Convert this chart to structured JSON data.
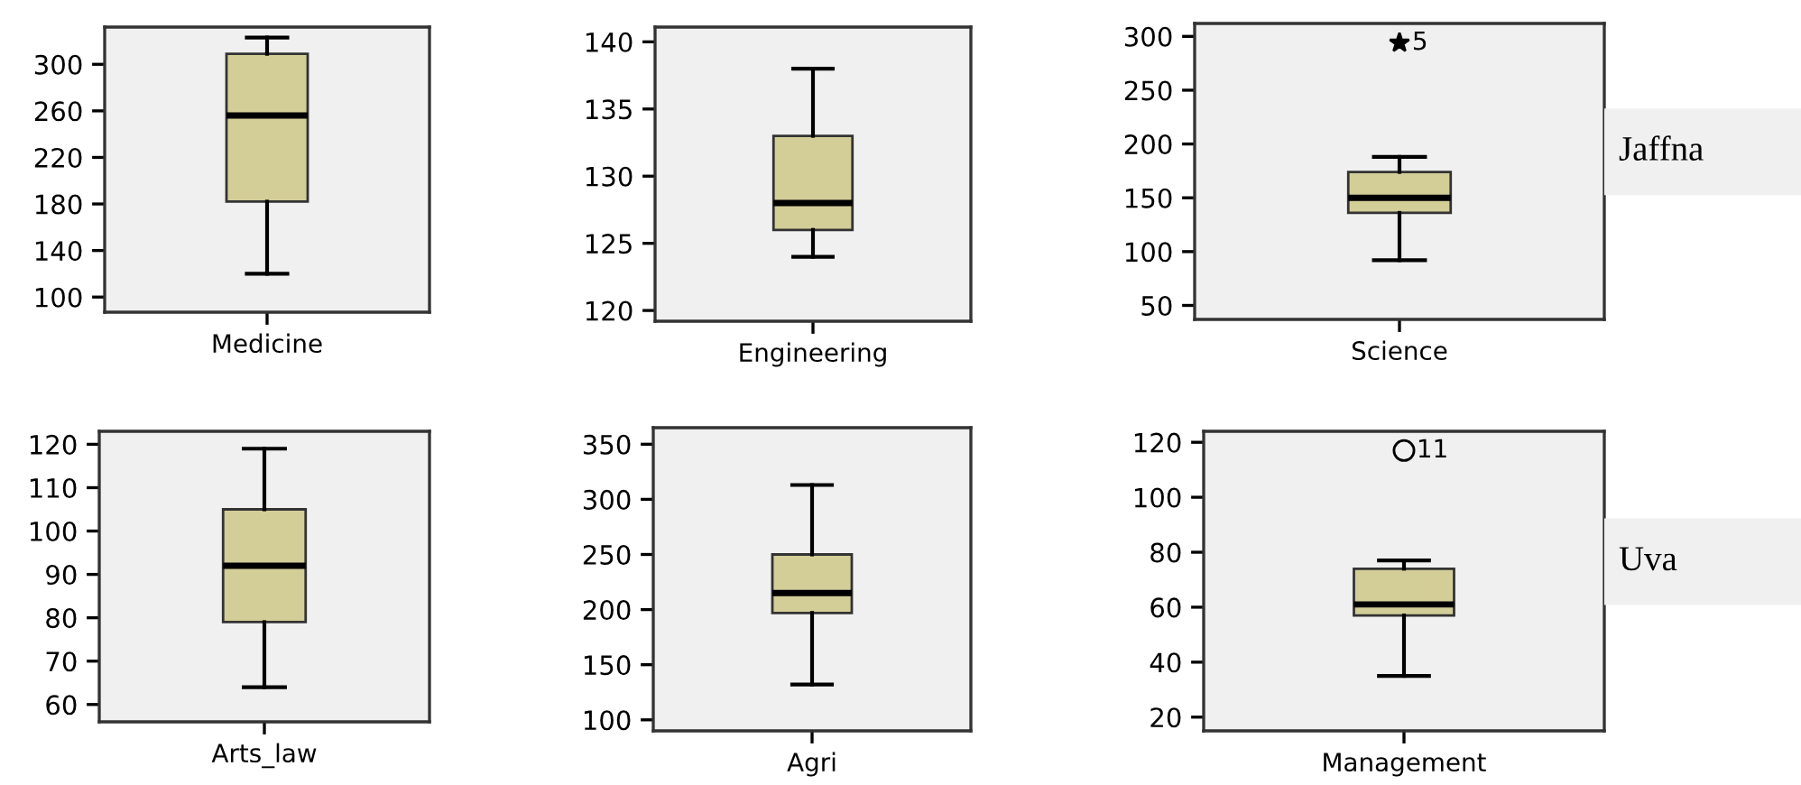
{
  "chart_data": [
    {
      "type": "box",
      "categories": [
        "Medicine"
      ],
      "boxes": [
        {
          "low": 120,
          "q1": 182,
          "median": 256,
          "q3": 309,
          "high": 323
        }
      ],
      "color": "#d3cd98",
      "ylim": [
        87,
        332
      ],
      "yticks": [
        100,
        140,
        180,
        220,
        260,
        300
      ],
      "grid": false
    },
    {
      "type": "box",
      "categories": [
        "Engineering"
      ],
      "boxes": [
        {
          "low": 124,
          "q1": 126,
          "median": 128,
          "q3": 133,
          "high": 138
        }
      ],
      "color": "#d3cd98",
      "ylim": [
        119.2,
        141.1
      ],
      "yticks": [
        120,
        125,
        130,
        135,
        140
      ],
      "grid": false
    },
    {
      "type": "box",
      "categories": [
        "Science"
      ],
      "boxes": [
        {
          "low": 92,
          "q1": 136,
          "median": 150,
          "q3": 174,
          "high": 188,
          "outliers": [
            294
          ]
        }
      ],
      "color": "#d3cd98",
      "marker": "star",
      "ylim": [
        37,
        312
      ],
      "yticks": [
        50,
        100,
        150,
        200,
        250,
        300
      ],
      "grid": false,
      "annotations": [
        "5",
        "Jaffna"
      ]
    },
    {
      "type": "box",
      "categories": [
        "Arts_law"
      ],
      "boxes": [
        {
          "low": 64,
          "q1": 79,
          "median": 92,
          "q3": 105,
          "high": 119
        }
      ],
      "color": "#d3cd98",
      "ylim": [
        56,
        123
      ],
      "yticks": [
        60,
        70,
        80,
        90,
        100,
        110,
        120
      ],
      "grid": false
    },
    {
      "type": "box",
      "categories": [
        "Agri"
      ],
      "boxes": [
        {
          "low": 132,
          "q1": 197,
          "median": 215,
          "q3": 250,
          "high": 313
        }
      ],
      "color": "#d3cd98",
      "ylim": [
        90,
        365
      ],
      "yticks": [
        100,
        150,
        200,
        250,
        300,
        350
      ],
      "grid": false
    },
    {
      "type": "box",
      "categories": [
        "Management"
      ],
      "boxes": [
        {
          "low": 35,
          "q1": 57,
          "median": 61,
          "q3": 74,
          "high": 77,
          "outliers": [
            117
          ]
        }
      ],
      "color": "#d3cd98",
      "marker": "circle",
      "ylim": [
        15,
        124
      ],
      "yticks": [
        20,
        40,
        60,
        80,
        100,
        120
      ],
      "grid": false,
      "annotations": [
        "11",
        "Uva"
      ]
    }
  ]
}
